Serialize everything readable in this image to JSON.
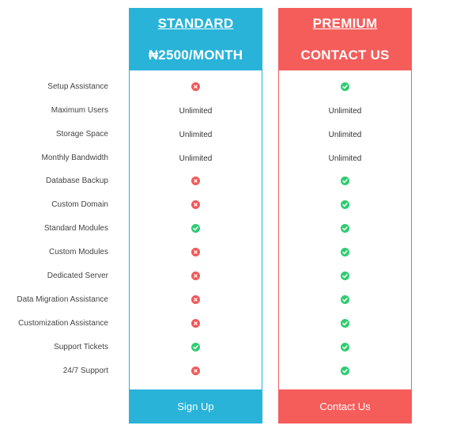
{
  "features": [
    "Setup Assistance",
    "Maximum Users",
    "Storage Space",
    "Monthly Bandwidth",
    "Database Backup",
    "Custom Domain",
    "Standard Modules",
    "Custom Modules",
    "Dedicated Server",
    "Data Migration Assistance",
    "Customization Assistance",
    "Support Tickets",
    "24/7 Support"
  ],
  "plans": [
    {
      "name": "STANDARD",
      "price": "₦2500/MONTH",
      "color": "#29b3d9",
      "button_label": "Sign Up",
      "values": [
        "no",
        "Unlimited",
        "Unlimited",
        "Unlimited",
        "no",
        "no",
        "yes",
        "no",
        "no",
        "no",
        "no",
        "yes",
        "no"
      ]
    },
    {
      "name": "PREMIUM",
      "price": "CONTACT US",
      "color": "#f55d5b",
      "button_label": "Contact Us",
      "values": [
        "yes",
        "Unlimited",
        "Unlimited",
        "Unlimited",
        "yes",
        "yes",
        "yes",
        "yes",
        "yes",
        "yes",
        "yes",
        "yes",
        "yes"
      ]
    }
  ],
  "icons": {
    "yes": "check-circle-icon",
    "no": "x-circle-icon"
  }
}
